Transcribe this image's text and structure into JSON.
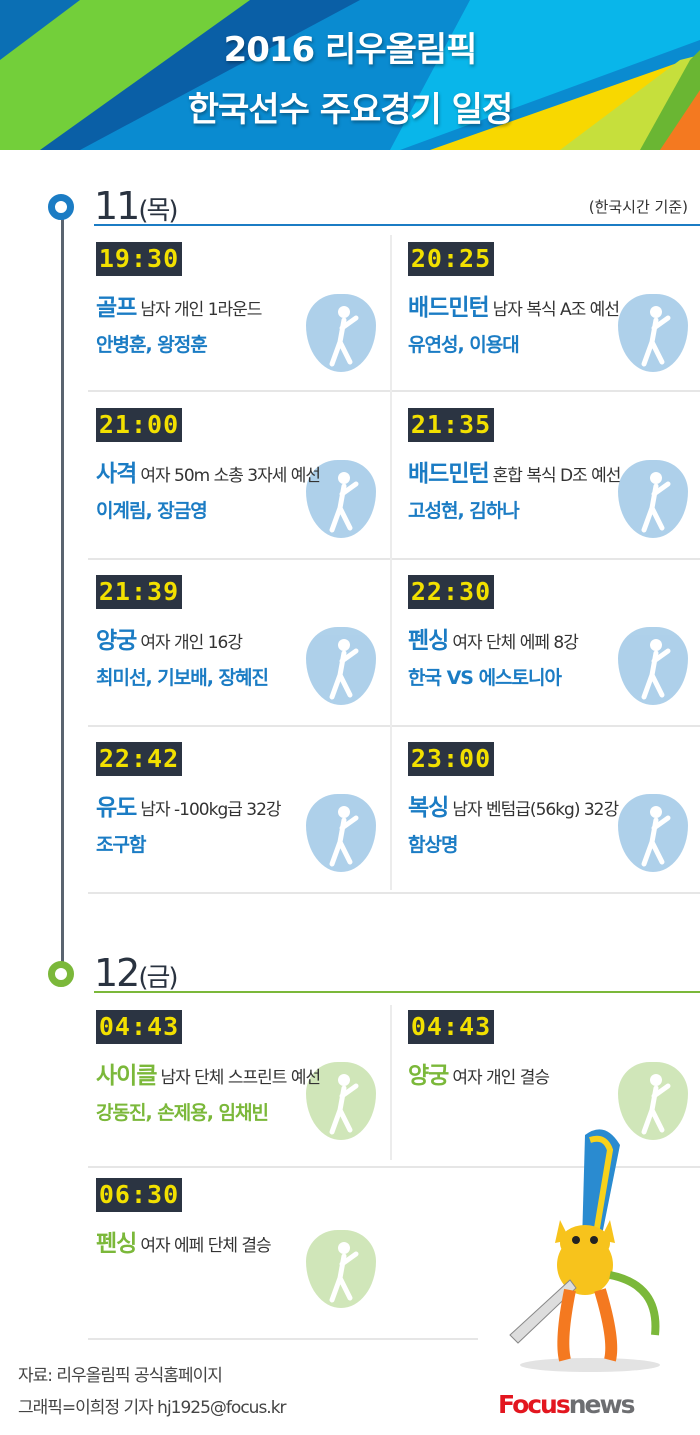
{
  "header": {
    "title_line1": "2016 리우올림픽",
    "title_line2": "한국선수 주요경기 일정"
  },
  "colors": {
    "day1": "#1b7cc4",
    "day2": "#7bb83a",
    "time_bg": "#2b3442",
    "time_digits": "#f2e000"
  },
  "note": "(한국시간 기준)",
  "days": [
    {
      "date": "11",
      "weekday": "(목)",
      "color": "#1b7cc4",
      "events": [
        {
          "time": "19:30",
          "sport": "골프",
          "detail": "남자 개인 1라운드",
          "athletes": "안병훈, 왕정훈",
          "icon": "golf-icon"
        },
        {
          "time": "20:25",
          "sport": "배드민턴",
          "detail": "남자 복식 A조 예선",
          "athletes": "유연성, 이용대",
          "icon": "badminton-icon"
        },
        {
          "time": "21:00",
          "sport": "사격",
          "detail": "여자 50m 소총 3자세 예선",
          "athletes": "이계림, 장금영",
          "icon": "shooting-icon"
        },
        {
          "time": "21:35",
          "sport": "배드민턴",
          "detail": "혼합 복식 D조 예선",
          "athletes": "고성현, 김하나",
          "icon": "badminton-icon"
        },
        {
          "time": "21:39",
          "sport": "양궁",
          "detail": "여자 개인 16강",
          "athletes": "최미선, 기보배, 장혜진",
          "icon": "archery-icon"
        },
        {
          "time": "22:30",
          "sport": "펜싱",
          "detail": "여자 단체 에페 8강",
          "athletes": "한국 VS 에스토니아",
          "icon": "fencing-icon"
        },
        {
          "time": "22:42",
          "sport": "유도",
          "detail": "남자 -100kg급 32강",
          "athletes": "조구함",
          "icon": "judo-icon"
        },
        {
          "time": "23:00",
          "sport": "복싱",
          "detail": "남자 벤텀급(56kg) 32강",
          "athletes": "함상명",
          "icon": "boxing-icon"
        }
      ]
    },
    {
      "date": "12",
      "weekday": "(금)",
      "color": "#7bb83a",
      "events": [
        {
          "time": "04:43",
          "sport": "사이클",
          "detail": "남자 단체 스프린트 예선",
          "athletes": "강동진, 손제용, 임채빈",
          "icon": "cycling-icon"
        },
        {
          "time": "04:43",
          "sport": "양궁",
          "detail": "여자 개인 결승",
          "athletes": "",
          "icon": "archery-icon"
        },
        {
          "time": "06:30",
          "sport": "펜싱",
          "detail": "여자 에페 단체 결승",
          "athletes": "",
          "icon": "fencing-icon"
        }
      ]
    }
  ],
  "footer": {
    "source": "자료: 리우올림픽 공식홈페이지",
    "credit": "그래픽=이희정 기자 hj1925@focus.kr"
  },
  "logo": {
    "part1": "Focus",
    "part2": "news"
  }
}
